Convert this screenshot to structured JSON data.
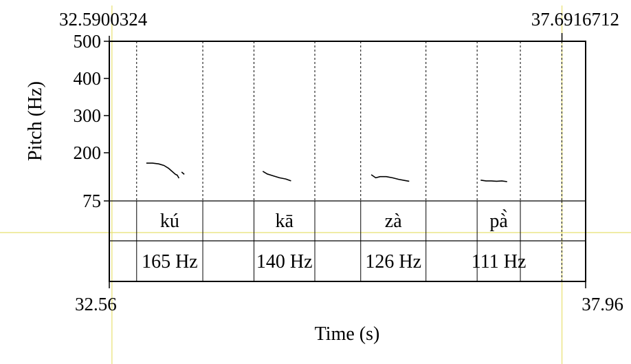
{
  "chart_data": {
    "type": "line",
    "cursor_start": "32.5900324",
    "cursor_end": "37.6916712",
    "xlabel": "Time (s)",
    "ylabel": "Pitch (Hz)",
    "xlim": [
      32.56,
      37.96
    ],
    "x_tick_labels": [
      "32.56",
      "37.96"
    ],
    "ylim": [
      75,
      500
    ],
    "y_ticks": [
      {
        "value": 500,
        "label": "500"
      },
      {
        "value": 400,
        "label": "400"
      },
      {
        "value": 300,
        "label": "300"
      },
      {
        "value": 200,
        "label": "200"
      },
      {
        "value": 75,
        "label": "75"
      }
    ],
    "grid": false,
    "accent_color": "#e8e070",
    "syllables": [
      {
        "text": "kú",
        "start": 32.87,
        "end": 33.62
      },
      {
        "text": "kā",
        "start": 34.2,
        "end": 34.89
      },
      {
        "text": "zà",
        "start": 35.41,
        "end": 36.15
      },
      {
        "text": "pà̀",
        "start": 36.73,
        "end": 37.22
      }
    ],
    "pitch_labels": [
      {
        "text": "165 Hz",
        "start": 32.87,
        "end": 33.62
      },
      {
        "text": "140 Hz",
        "start": 34.2,
        "end": 34.89
      },
      {
        "text": "126 Hz",
        "start": 35.41,
        "end": 36.15
      },
      {
        "text": "111 Hz",
        "start": 36.73,
        "end": 37.22
      }
    ],
    "dotted_boundaries": [
      32.87,
      33.62,
      34.2,
      34.89,
      35.41,
      36.15,
      36.73,
      37.22,
      37.69
    ],
    "series": [
      {
        "x": [
          32.98,
          33.05,
          33.12,
          33.18,
          33.23,
          33.27,
          33.31,
          33.33,
          33.35
        ],
        "y": [
          173,
          173,
          171,
          167,
          160,
          152,
          144,
          142,
          134
        ]
      },
      {
        "x": [
          33.38,
          33.41
        ],
        "y": [
          150,
          144
        ]
      },
      {
        "x": [
          34.3,
          34.35,
          34.42,
          34.49,
          34.56,
          34.62
        ],
        "y": [
          152,
          145,
          140,
          135,
          132,
          127
        ]
      },
      {
        "x": [
          35.53,
          35.58,
          35.63,
          35.7,
          35.77,
          35.84,
          35.91,
          35.96
        ],
        "y": [
          143,
          135,
          138,
          138,
          135,
          131,
          128,
          126
        ]
      },
      {
        "x": [
          36.77,
          36.83,
          36.89,
          36.95,
          37.01,
          37.07
        ],
        "y": [
          129,
          127,
          127,
          126,
          127,
          125
        ]
      }
    ]
  }
}
